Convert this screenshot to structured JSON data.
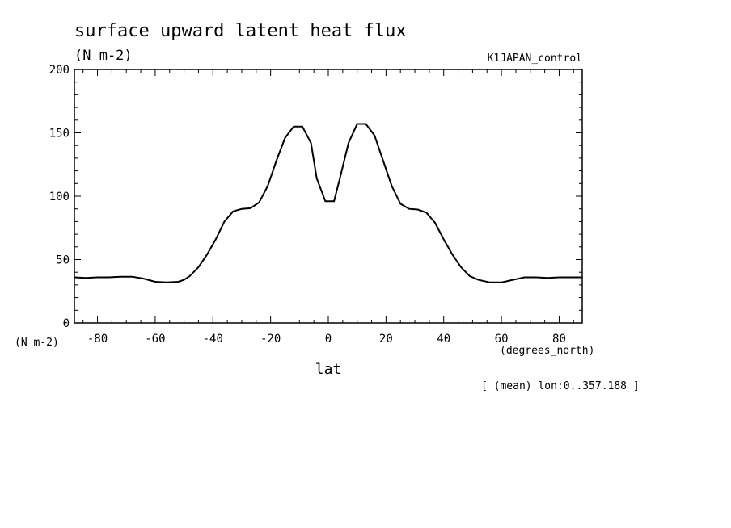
{
  "chart_data": {
    "type": "line",
    "title": "surface upward latent heat flux",
    "units": "(N m-2)",
    "experiment": "K1JAPAN_control",
    "ylabel": "(N m-2)",
    "xlabel": "lat",
    "x_units": "(degrees_north)",
    "note": "[ (mean) lon:0..357.188 ]",
    "xlim": [
      -88,
      88
    ],
    "ylim": [
      0,
      200
    ],
    "x_ticks": [
      -80,
      -60,
      -40,
      -20,
      0,
      20,
      40,
      60,
      80
    ],
    "y_ticks": [
      0,
      50,
      100,
      150,
      200
    ],
    "x_tick_labels": [
      "-80",
      "-60",
      "-40",
      "-20",
      "0",
      "20",
      "40",
      "60",
      "80"
    ],
    "y_tick_labels": [
      "0",
      "50",
      "100",
      "150",
      "200"
    ],
    "grid": false,
    "series": [
      {
        "x": [
          -88,
          -84,
          -80,
          -76,
          -72,
          -68,
          -64,
          -60,
          -56,
          -52,
          -50,
          -48,
          -45,
          -42,
          -39,
          -36,
          -33,
          -30,
          -27,
          -24,
          -21,
          -18,
          -15,
          -12,
          -9,
          -6,
          -4,
          -1,
          2,
          4,
          7,
          10,
          13,
          16,
          19,
          22,
          25,
          28,
          31,
          34,
          37,
          40,
          43,
          46,
          49,
          52,
          56,
          60,
          64,
          68,
          72,
          76,
          80,
          84,
          88
        ],
        "y": [
          36,
          35.5,
          36,
          36,
          36.5,
          36.5,
          35,
          32.5,
          32,
          32.5,
          34,
          37,
          44,
          54,
          66,
          80,
          88,
          90,
          90.5,
          95,
          108,
          128,
          146,
          155,
          155,
          142,
          114,
          96,
          96,
          114,
          142,
          157,
          157,
          148,
          128,
          108,
          94,
          90,
          89.5,
          87,
          79,
          66,
          54,
          44,
          37,
          34,
          32,
          32,
          34,
          36,
          36,
          35.5,
          36,
          36,
          36
        ]
      }
    ]
  }
}
